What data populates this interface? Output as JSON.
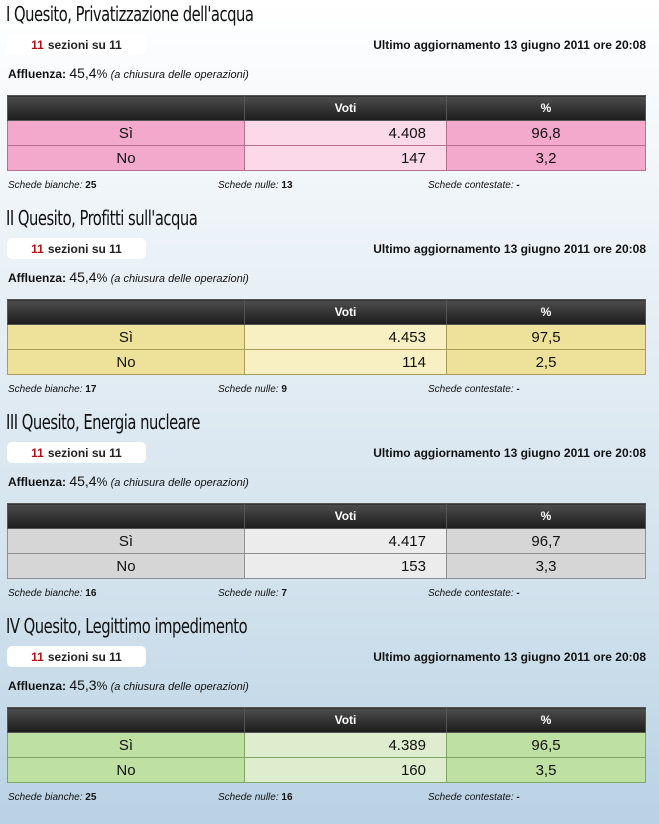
{
  "common": {
    "sezioni_done": "11",
    "sezioni_text": "sezioni su 11",
    "aggiornamento": "Ultimo aggiornamento 13 giugno 2011 ore 20:08",
    "affluenza_label": "Affluenza:",
    "affluenza_note": "(a chiusura delle operazioni)",
    "percent_sign": "%",
    "col_voti": "Voti",
    "col_pct": "%",
    "label_si": "Sì",
    "label_no": "No",
    "schede_bianche_label": "Schede bianche:",
    "schede_nulle_label": "Schede nulle:",
    "schede_contestate_label": "Schede contestate:"
  },
  "quesiti": [
    {
      "title": "I Quesito, Privatizzazione dell'acqua",
      "theme_color": "#f2a9cb",
      "affluenza": "45,4",
      "si_voti": "4.408",
      "si_pct": "96,8",
      "no_voti": "147",
      "no_pct": "3,2",
      "bianche": "25",
      "nulle": "13",
      "contestate": "-"
    },
    {
      "title": "II Quesito, Profitti sull'acqua",
      "theme_color": "#eee29a",
      "affluenza": "45,4",
      "si_voti": "4.453",
      "si_pct": "97,5",
      "no_voti": "114",
      "no_pct": "2,5",
      "bianche": "17",
      "nulle": "9",
      "contestate": "-"
    },
    {
      "title": "III Quesito, Energia nucleare",
      "theme_color": "#d6d6d6",
      "affluenza": "45,4",
      "si_voti": "4.417",
      "si_pct": "96,7",
      "no_voti": "153",
      "no_pct": "3,3",
      "bianche": "16",
      "nulle": "7",
      "contestate": "-"
    },
    {
      "title": "IV Quesito, Legittimo impedimento",
      "theme_color": "#bfe0a3",
      "affluenza": "45,3",
      "si_voti": "4.389",
      "si_pct": "96,5",
      "no_voti": "160",
      "no_pct": "3,5",
      "bianche": "25",
      "nulle": "16",
      "contestate": "-"
    }
  ]
}
